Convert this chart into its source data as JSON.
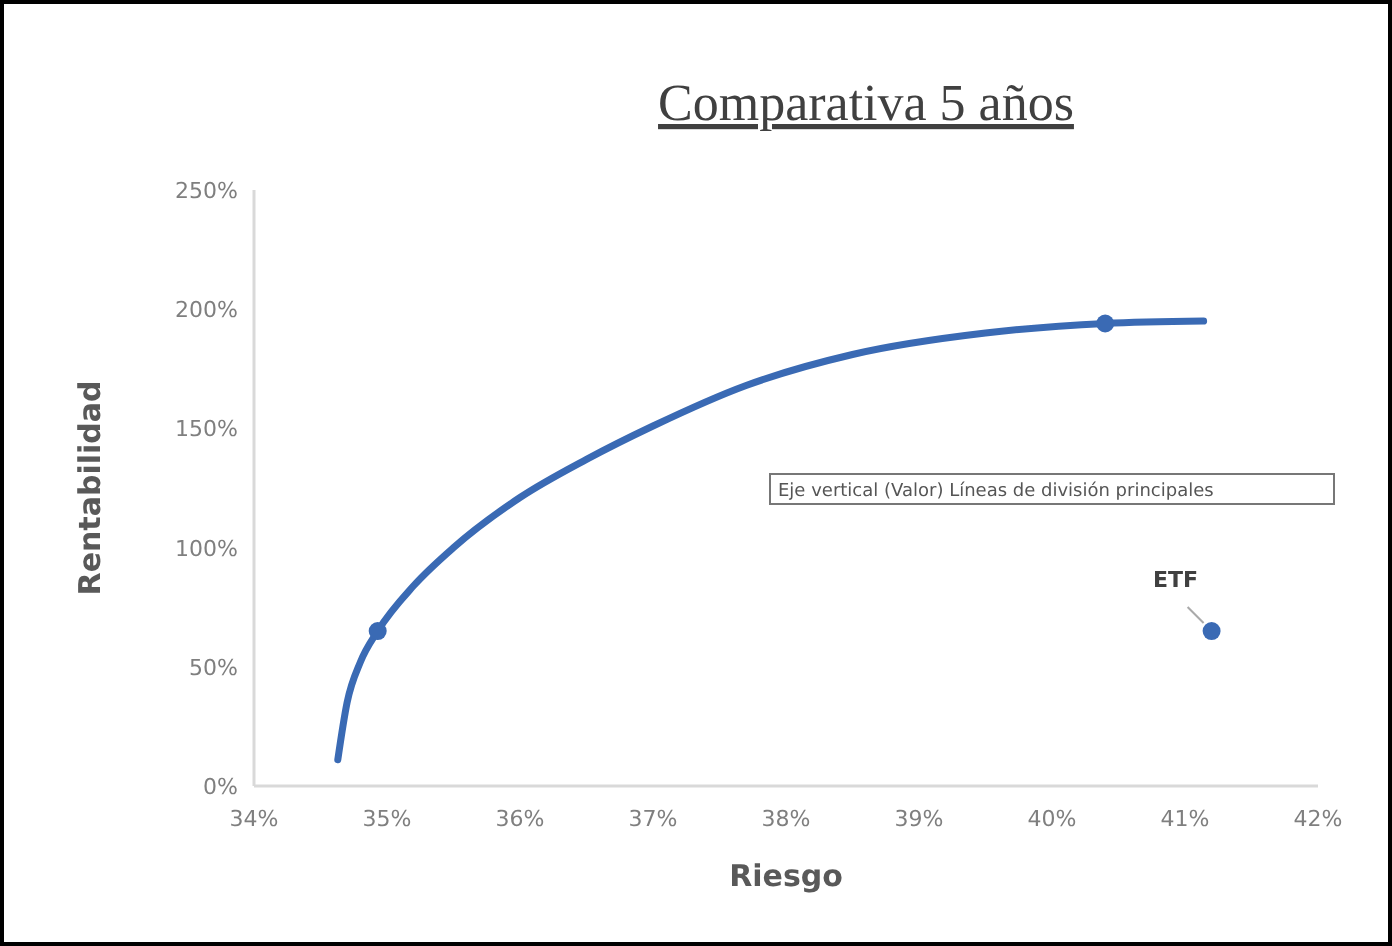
{
  "chart_data": {
    "type": "scatter",
    "title": "Comparativa 5 años",
    "xlabel": "Riesgo",
    "ylabel": "Rentabilidad",
    "xlim": [
      34,
      42
    ],
    "ylim": [
      0,
      250
    ],
    "xticks": [
      {
        "value": 34,
        "label": "34%"
      },
      {
        "value": 35,
        "label": "35%"
      },
      {
        "value": 36,
        "label": "36%"
      },
      {
        "value": 37,
        "label": "37%"
      },
      {
        "value": 38,
        "label": "38%"
      },
      {
        "value": 39,
        "label": "39%"
      },
      {
        "value": 40,
        "label": "40%"
      },
      {
        "value": 41,
        "label": "41%"
      },
      {
        "value": 42,
        "label": "42%"
      }
    ],
    "yticks": [
      {
        "value": 0,
        "label": "0%"
      },
      {
        "value": 50,
        "label": "50%"
      },
      {
        "value": 100,
        "label": "100%"
      },
      {
        "value": 150,
        "label": "150%"
      },
      {
        "value": 200,
        "label": "200%"
      },
      {
        "value": 250,
        "label": "250%"
      }
    ],
    "grid": false,
    "series": [
      {
        "type": "line",
        "color": "#3a6ab4",
        "marker": "none",
        "line_style": "solid",
        "x": [
          34.63,
          34.7,
          34.8,
          34.93,
          35.2,
          35.5,
          36,
          36.5,
          37,
          37.7,
          38.5,
          39.5,
          40.4,
          41.14
        ],
        "values": [
          11,
          35,
          52,
          65,
          84,
          100,
          121,
          137,
          151,
          168,
          181,
          190,
          194,
          195
        ]
      },
      {
        "color": "#3a6ab4",
        "marker": "circle",
        "x": [
          34.93,
          40.4,
          41.2
        ],
        "values": [
          65,
          194,
          65
        ]
      }
    ],
    "annotations": [
      {
        "text": "ETF",
        "x": 41.2,
        "y": 65
      },
      "Eje vertical (Valor)  Líneas de división principales"
    ]
  }
}
